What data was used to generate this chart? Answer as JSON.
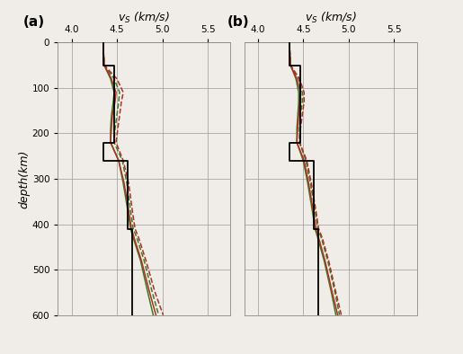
{
  "title_x": "$v_S$ (km/s)",
  "ylabel": "depth(km)",
  "xlim": [
    3.85,
    5.75
  ],
  "ylim": [
    600,
    0
  ],
  "xticks": [
    4.0,
    4.5,
    5.0,
    5.5
  ],
  "yticks": [
    0,
    100,
    200,
    300,
    400,
    500,
    600
  ],
  "panel_labels": [
    "(a)",
    "(b)"
  ],
  "black_step_a": {
    "depth": [
      0,
      0,
      50,
      50,
      220,
      220,
      260,
      260,
      410,
      410,
      600
    ],
    "vel": [
      4.35,
      4.35,
      4.35,
      4.47,
      4.47,
      4.35,
      4.35,
      4.62,
      4.62,
      4.67,
      4.67
    ]
  },
  "black_step_b": {
    "depth": [
      0,
      0,
      50,
      50,
      220,
      220,
      260,
      260,
      410,
      410,
      600
    ],
    "vel": [
      4.35,
      4.35,
      4.35,
      4.47,
      4.47,
      4.35,
      4.35,
      4.62,
      4.62,
      4.67,
      4.67
    ]
  },
  "green_solid_a": {
    "depth": [
      0,
      10,
      50,
      80,
      110,
      130,
      160,
      190,
      220,
      260,
      310,
      370,
      410,
      430,
      480,
      550,
      600
    ],
    "vel": [
      4.35,
      4.35,
      4.36,
      4.43,
      4.47,
      4.46,
      4.44,
      4.43,
      4.43,
      4.52,
      4.57,
      4.62,
      4.65,
      4.68,
      4.76,
      4.84,
      4.9
    ]
  },
  "green_dashed_a": {
    "depth": [
      0,
      10,
      50,
      80,
      110,
      130,
      160,
      190,
      220,
      260,
      310,
      370,
      410,
      430,
      480,
      550,
      600
    ],
    "vel": [
      4.35,
      4.35,
      4.36,
      4.47,
      4.53,
      4.52,
      4.5,
      4.48,
      4.47,
      4.56,
      4.61,
      4.65,
      4.68,
      4.72,
      4.8,
      4.89,
      4.96
    ]
  },
  "red_solid_a": {
    "depth": [
      0,
      10,
      50,
      80,
      110,
      130,
      160,
      190,
      220,
      260,
      310,
      370,
      410,
      430,
      480,
      550,
      600
    ],
    "vel": [
      4.35,
      4.35,
      4.36,
      4.44,
      4.49,
      4.48,
      4.45,
      4.44,
      4.43,
      4.52,
      4.58,
      4.63,
      4.66,
      4.69,
      4.77,
      4.86,
      4.93
    ]
  },
  "red_dashed_a": {
    "depth": [
      0,
      10,
      50,
      80,
      110,
      130,
      160,
      190,
      220,
      260,
      310,
      370,
      410,
      430,
      480,
      550,
      600
    ],
    "vel": [
      4.35,
      4.35,
      4.36,
      4.5,
      4.57,
      4.55,
      4.53,
      4.51,
      4.49,
      4.57,
      4.63,
      4.67,
      4.7,
      4.74,
      4.82,
      4.92,
      5.01
    ]
  },
  "green_solid_b": {
    "depth": [
      0,
      10,
      50,
      80,
      110,
      130,
      160,
      190,
      220,
      260,
      310,
      370,
      410,
      430,
      480,
      550,
      600
    ],
    "vel": [
      4.35,
      4.35,
      4.36,
      4.42,
      4.45,
      4.45,
      4.44,
      4.43,
      4.43,
      4.5,
      4.55,
      4.6,
      4.63,
      4.66,
      4.73,
      4.81,
      4.86
    ]
  },
  "green_dashed_b": {
    "depth": [
      0,
      10,
      50,
      80,
      110,
      130,
      160,
      190,
      220,
      260,
      310,
      370,
      410,
      430,
      480,
      550,
      600
    ],
    "vel": [
      4.35,
      4.35,
      4.36,
      4.45,
      4.49,
      4.49,
      4.47,
      4.46,
      4.46,
      4.53,
      4.58,
      4.63,
      4.66,
      4.7,
      4.77,
      4.85,
      4.9
    ]
  },
  "red_solid_b": {
    "depth": [
      0,
      10,
      50,
      80,
      110,
      130,
      160,
      190,
      220,
      260,
      310,
      370,
      410,
      430,
      480,
      550,
      600
    ],
    "vel": [
      4.35,
      4.35,
      4.36,
      4.43,
      4.47,
      4.46,
      4.45,
      4.44,
      4.43,
      4.51,
      4.56,
      4.61,
      4.64,
      4.67,
      4.74,
      4.82,
      4.88
    ]
  },
  "red_dashed_b": {
    "depth": [
      0,
      10,
      50,
      80,
      110,
      130,
      160,
      190,
      220,
      260,
      310,
      370,
      410,
      430,
      480,
      550,
      600
    ],
    "vel": [
      4.35,
      4.35,
      4.36,
      4.46,
      4.51,
      4.51,
      4.49,
      4.47,
      4.46,
      4.54,
      4.59,
      4.64,
      4.67,
      4.71,
      4.78,
      4.86,
      4.92
    ]
  },
  "color_green": "#3a7a2a",
  "color_red": "#b03020",
  "color_black": "#000000",
  "lw_colored": 1.1,
  "lw_black": 1.3,
  "bg_color": "#f0ede8"
}
